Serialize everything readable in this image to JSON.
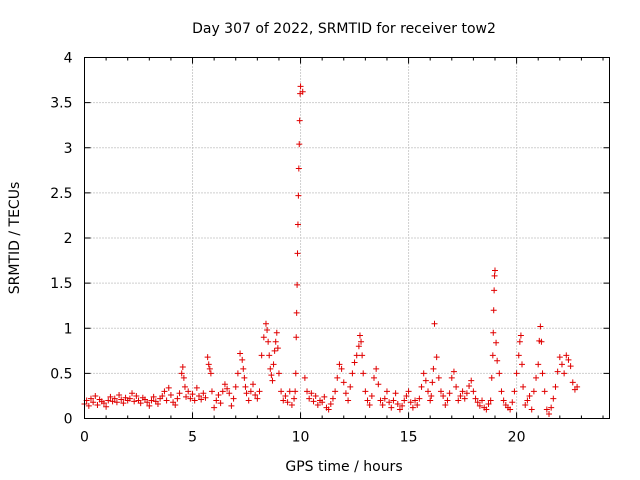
{
  "chart_data": {
    "type": "scatter",
    "title": "Day 307 of 2022, SRMTID for receiver tow2",
    "xlabel": "GPS time / hours",
    "ylabel": "SRMTID / TECUs",
    "xlim": [
      0,
      24.3
    ],
    "ylim": [
      0,
      4
    ],
    "x_ticks": [
      "0",
      "5",
      "10",
      "15",
      "20"
    ],
    "y_ticks": [
      "0",
      "0.5",
      "1",
      "1.5",
      "2",
      "2.5",
      "3",
      "3.5",
      "4"
    ],
    "grid": true,
    "marker": "+",
    "color": "#e00000",
    "series": [
      {
        "name": "tow2",
        "x": [
          0.0,
          0.1,
          0.2,
          0.3,
          0.4,
          0.5,
          0.6,
          0.7,
          0.8,
          0.9,
          1.0,
          1.1,
          1.2,
          1.3,
          1.4,
          1.5,
          1.6,
          1.7,
          1.8,
          1.9,
          2.0,
          2.1,
          2.2,
          2.3,
          2.4,
          2.5,
          2.6,
          2.7,
          2.8,
          2.9,
          3.0,
          3.1,
          3.2,
          3.3,
          3.4,
          3.5,
          3.6,
          3.7,
          3.8,
          3.9,
          4.0,
          4.1,
          4.2,
          4.3,
          4.4,
          4.5,
          4.55,
          4.6,
          4.65,
          4.7,
          4.8,
          4.9,
          5.0,
          5.1,
          5.2,
          5.3,
          5.4,
          5.5,
          5.6,
          5.7,
          5.75,
          5.8,
          5.85,
          5.9,
          6.0,
          6.1,
          6.2,
          6.3,
          6.4,
          6.5,
          6.6,
          6.7,
          6.8,
          6.9,
          7.0,
          7.1,
          7.2,
          7.3,
          7.35,
          7.4,
          7.45,
          7.5,
          7.6,
          7.7,
          7.8,
          7.9,
          8.0,
          8.1,
          8.2,
          8.3,
          8.4,
          8.45,
          8.5,
          8.55,
          8.6,
          8.65,
          8.7,
          8.75,
          8.8,
          8.85,
          8.9,
          8.95,
          9.0,
          9.1,
          9.2,
          9.3,
          9.4,
          9.5,
          9.6,
          9.7,
          9.75,
          9.78,
          9.8,
          9.82,
          9.84,
          9.86,
          9.88,
          9.9,
          9.92,
          9.94,
          9.96,
          9.98,
          10.0,
          10.1,
          10.2,
          10.3,
          10.4,
          10.5,
          10.6,
          10.7,
          10.8,
          10.9,
          11.0,
          11.1,
          11.2,
          11.3,
          11.4,
          11.5,
          11.6,
          11.7,
          11.8,
          11.9,
          12.0,
          12.1,
          12.2,
          12.3,
          12.4,
          12.5,
          12.6,
          12.7,
          12.75,
          12.8,
          12.85,
          12.9,
          13.0,
          13.1,
          13.2,
          13.3,
          13.4,
          13.5,
          13.6,
          13.7,
          13.8,
          13.9,
          14.0,
          14.1,
          14.2,
          14.3,
          14.4,
          14.5,
          14.6,
          14.7,
          14.8,
          14.9,
          15.0,
          15.1,
          15.2,
          15.3,
          15.4,
          15.5,
          15.6,
          15.7,
          15.8,
          15.9,
          16.0,
          16.05,
          16.1,
          16.15,
          16.2,
          16.3,
          16.4,
          16.5,
          16.6,
          16.7,
          16.8,
          16.9,
          17.0,
          17.1,
          17.2,
          17.3,
          17.4,
          17.5,
          17.6,
          17.7,
          17.8,
          17.9,
          18.0,
          18.1,
          18.2,
          18.3,
          18.4,
          18.5,
          18.6,
          18.7,
          18.8,
          18.85,
          18.9,
          18.92,
          18.94,
          18.96,
          18.98,
          19.0,
          19.05,
          19.1,
          19.2,
          19.3,
          19.4,
          19.5,
          19.6,
          19.7,
          19.8,
          19.9,
          20.0,
          20.1,
          20.15,
          20.2,
          20.25,
          20.3,
          20.4,
          20.5,
          20.6,
          20.7,
          20.8,
          20.9,
          21.0,
          21.05,
          21.1,
          21.15,
          21.2,
          21.3,
          21.4,
          21.5,
          21.6,
          21.7,
          21.8,
          21.9,
          22.0,
          22.1,
          22.2,
          22.3,
          22.4,
          22.5,
          22.6,
          22.7,
          22.8
        ],
        "y": [
          0.16,
          0.2,
          0.14,
          0.22,
          0.18,
          0.25,
          0.15,
          0.21,
          0.19,
          0.17,
          0.13,
          0.2,
          0.24,
          0.19,
          0.22,
          0.18,
          0.26,
          0.21,
          0.17,
          0.23,
          0.2,
          0.22,
          0.28,
          0.19,
          0.25,
          0.2,
          0.17,
          0.23,
          0.21,
          0.18,
          0.14,
          0.2,
          0.24,
          0.19,
          0.16,
          0.22,
          0.25,
          0.3,
          0.2,
          0.34,
          0.26,
          0.18,
          0.15,
          0.22,
          0.28,
          0.5,
          0.57,
          0.45,
          0.35,
          0.24,
          0.3,
          0.22,
          0.27,
          0.2,
          0.34,
          0.25,
          0.21,
          0.28,
          0.23,
          0.68,
          0.6,
          0.55,
          0.5,
          0.3,
          0.12,
          0.2,
          0.26,
          0.17,
          0.3,
          0.38,
          0.33,
          0.28,
          0.14,
          0.22,
          0.35,
          0.5,
          0.72,
          0.65,
          0.55,
          0.45,
          0.35,
          0.28,
          0.2,
          0.3,
          0.38,
          0.26,
          0.22,
          0.3,
          0.7,
          0.9,
          1.05,
          0.98,
          0.85,
          0.7,
          0.55,
          0.48,
          0.42,
          0.6,
          0.75,
          0.85,
          0.95,
          0.78,
          0.5,
          0.3,
          0.2,
          0.25,
          0.18,
          0.3,
          0.15,
          0.22,
          0.3,
          0.5,
          0.9,
          1.17,
          1.48,
          1.83,
          2.15,
          2.47,
          2.77,
          3.04,
          3.3,
          3.6,
          3.68,
          3.62,
          0.45,
          0.3,
          0.22,
          0.28,
          0.19,
          0.25,
          0.15,
          0.2,
          0.18,
          0.24,
          0.12,
          0.1,
          0.16,
          0.22,
          0.3,
          0.45,
          0.6,
          0.55,
          0.4,
          0.28,
          0.2,
          0.35,
          0.5,
          0.62,
          0.7,
          0.8,
          0.92,
          0.85,
          0.7,
          0.5,
          0.3,
          0.2,
          0.15,
          0.25,
          0.45,
          0.55,
          0.38,
          0.2,
          0.15,
          0.22,
          0.3,
          0.18,
          0.12,
          0.2,
          0.28,
          0.16,
          0.1,
          0.14,
          0.2,
          0.25,
          0.3,
          0.18,
          0.12,
          0.2,
          0.15,
          0.22,
          0.35,
          0.5,
          0.42,
          0.3,
          0.2,
          0.25,
          0.4,
          0.55,
          1.05,
          0.68,
          0.45,
          0.3,
          0.25,
          0.15,
          0.2,
          0.28,
          0.45,
          0.52,
          0.35,
          0.2,
          0.25,
          0.3,
          0.22,
          0.28,
          0.36,
          0.42,
          0.3,
          0.22,
          0.18,
          0.14,
          0.2,
          0.12,
          0.1,
          0.16,
          0.2,
          0.45,
          0.7,
          0.95,
          1.2,
          1.42,
          1.58,
          1.64,
          0.84,
          0.64,
          0.5,
          0.3,
          0.2,
          0.15,
          0.12,
          0.1,
          0.18,
          0.3,
          0.5,
          0.7,
          0.85,
          0.92,
          0.6,
          0.35,
          0.15,
          0.2,
          0.25,
          0.1,
          0.3,
          0.45,
          0.6,
          0.86,
          1.02,
          0.85,
          0.5,
          0.3,
          0.1,
          0.05,
          0.12,
          0.22,
          0.35,
          0.52,
          0.68,
          0.6,
          0.5,
          0.7,
          0.65,
          0.58,
          0.4,
          0.32,
          0.35
        ]
      }
    ]
  }
}
